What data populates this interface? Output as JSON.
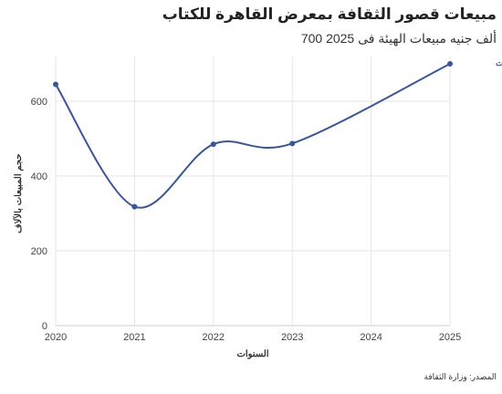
{
  "colors": {
    "series": "#3a5795",
    "grid": "#e6e6e6",
    "axis": "#cfcfcf"
  },
  "chart_data": {
    "type": "line",
    "title": "مبيعات قصور الثقافة بمعرض القاهرة للكتاب",
    "subtitle": "ألف جنيه مبيعات الهيئة فى 2025 700",
    "xlabel": "السنوات",
    "ylabel": "حجم المبيعات بالآلاف",
    "source": "المصدر: وزارة الثقافة",
    "x": [
      2020,
      2021,
      2022,
      2023,
      2025
    ],
    "x_ticks": [
      2020,
      2021,
      2022,
      2023,
      2024,
      2025
    ],
    "y_ticks": [
      0,
      200,
      400,
      600
    ],
    "xlim": [
      2020,
      2025
    ],
    "ylim": [
      0,
      700
    ],
    "grid": true,
    "series": [
      {
        "name": "حجم المبيعات",
        "values": [
          645,
          318,
          485,
          487,
          700
        ]
      }
    ]
  }
}
